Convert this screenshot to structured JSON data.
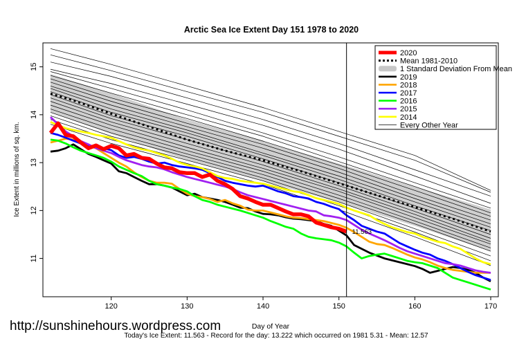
{
  "chart_data": {
    "type": "line",
    "title": "Arctic Sea Ice Extent Day 151 1978 to 2020",
    "xlabel": "Day of Year",
    "ylabel": "Ice Extent in millions of sq. km.",
    "xlim": [
      111,
      171
    ],
    "ylim": [
      10.2,
      15.5
    ],
    "x_ticks": [
      120,
      130,
      140,
      150,
      160,
      170
    ],
    "y_ticks": [
      11,
      12,
      13,
      14,
      15
    ],
    "current_day": 151,
    "current_value_label": "11.563",
    "footer": "Today's Ice Extent: 11.563  - Record for the day: 13.222 which occurred on 1981 5.31  - Mean: 12.57",
    "watermark": "http://sunshinehours.wordpress.com",
    "legend_position": "top-right",
    "legend": [
      {
        "label": "2020",
        "color": "#ff0000",
        "style": "thick"
      },
      {
        "label": "Mean 1981-2010",
        "color": "#000000",
        "style": "dotted"
      },
      {
        "label": "1 Standard Deviation From Mean",
        "color": "#c8c8c8",
        "style": "band"
      },
      {
        "label": "2019",
        "color": "#000000",
        "style": "line"
      },
      {
        "label": "2018",
        "color": "#ffa500",
        "style": "line"
      },
      {
        "label": "2017",
        "color": "#0000ff",
        "style": "line"
      },
      {
        "label": "2016",
        "color": "#00ff00",
        "style": "line"
      },
      {
        "label": "2015",
        "color": "#a020f0",
        "style": "line"
      },
      {
        "label": "2014",
        "color": "#ffff00",
        "style": "line"
      },
      {
        "label": "Every Other Year",
        "color": "#000000",
        "style": "thin"
      }
    ],
    "mean": {
      "x": [
        112,
        115,
        120,
        125,
        130,
        135,
        140,
        145,
        150,
        155,
        160,
        165,
        170
      ],
      "y": [
        14.44,
        14.3,
        14.02,
        13.75,
        13.48,
        13.25,
        13.05,
        12.82,
        12.57,
        12.32,
        12.07,
        11.83,
        11.56
      ]
    },
    "std_band": {
      "x": [
        112,
        120,
        130,
        140,
        150,
        160,
        170
      ],
      "upper": [
        14.85,
        14.45,
        13.9,
        13.45,
        12.98,
        12.5,
        12.02
      ],
      "lower": [
        14.05,
        13.6,
        13.05,
        12.62,
        12.17,
        11.68,
        11.15
      ]
    },
    "series": [
      {
        "name": "2020",
        "color": "#ff0000",
        "width": 5.5,
        "x": [
          112,
          113,
          114,
          115,
          116,
          117,
          118,
          119,
          120,
          121,
          122,
          123,
          124,
          125,
          126,
          127,
          128,
          129,
          130,
          131,
          132,
          133,
          134,
          135,
          136,
          137,
          138,
          139,
          140,
          141,
          142,
          143,
          144,
          145,
          146,
          147,
          148,
          149,
          150,
          151
        ],
        "y": [
          13.62,
          13.82,
          13.58,
          13.55,
          13.42,
          13.3,
          13.36,
          13.28,
          13.35,
          13.3,
          13.15,
          13.18,
          13.1,
          13.08,
          12.98,
          12.9,
          12.88,
          12.8,
          12.78,
          12.78,
          12.7,
          12.75,
          12.62,
          12.55,
          12.45,
          12.3,
          12.25,
          12.18,
          12.12,
          12.12,
          12.05,
          11.98,
          11.92,
          11.92,
          11.88,
          11.75,
          11.7,
          11.65,
          11.62,
          11.56
        ]
      },
      {
        "name": "2019",
        "color": "#000000",
        "width": 2.8,
        "x": [
          112,
          113,
          114,
          115,
          116,
          117,
          118,
          119,
          120,
          121,
          122,
          123,
          124,
          125,
          126,
          127,
          128,
          129,
          130,
          131,
          132,
          133,
          134,
          135,
          136,
          137,
          138,
          139,
          140,
          141,
          142,
          143,
          144,
          145,
          146,
          147,
          148,
          149,
          150,
          151,
          152,
          153,
          154,
          155,
          156,
          157,
          158,
          159,
          160,
          161,
          162,
          163,
          164,
          165,
          166,
          167,
          168,
          169,
          170
        ],
        "y": [
          13.23,
          13.25,
          13.3,
          13.38,
          13.28,
          13.18,
          13.12,
          13.05,
          12.98,
          12.82,
          12.78,
          12.7,
          12.62,
          12.55,
          12.55,
          12.52,
          12.48,
          12.4,
          12.32,
          12.35,
          12.28,
          12.25,
          12.22,
          12.18,
          12.12,
          12.06,
          12.05,
          11.98,
          11.93,
          11.92,
          11.9,
          11.86,
          11.83,
          11.82,
          11.8,
          11.78,
          11.72,
          11.68,
          11.58,
          11.48,
          11.28,
          11.2,
          11.12,
          11.06,
          11.0,
          10.96,
          10.92,
          10.88,
          10.84,
          10.78,
          10.7,
          10.74,
          10.78,
          10.82,
          10.8,
          10.76,
          10.7,
          10.6,
          10.52
        ]
      },
      {
        "name": "2018",
        "color": "#ffa500",
        "width": 2.8,
        "x": [
          112,
          113,
          114,
          115,
          116,
          117,
          118,
          119,
          120,
          121,
          122,
          123,
          124,
          125,
          126,
          127,
          128,
          129,
          130,
          131,
          132,
          133,
          134,
          135,
          136,
          137,
          138,
          139,
          140,
          141,
          142,
          143,
          144,
          145,
          146,
          147,
          148,
          149,
          150,
          151,
          152,
          153,
          154,
          155,
          156,
          157,
          158,
          159,
          160,
          161,
          162,
          163,
          164,
          165,
          166,
          167,
          168,
          169,
          170
        ],
        "y": [
          13.42,
          13.46,
          13.5,
          13.48,
          13.42,
          13.35,
          13.3,
          13.2,
          13.1,
          13.0,
          12.92,
          12.8,
          12.7,
          12.62,
          12.58,
          12.58,
          12.56,
          12.45,
          12.35,
          12.3,
          12.28,
          12.24,
          12.18,
          12.22,
          12.15,
          12.1,
          12.02,
          12.0,
          12.0,
          11.96,
          11.92,
          11.88,
          11.85,
          11.84,
          11.82,
          11.8,
          11.78,
          11.74,
          11.7,
          11.64,
          11.55,
          11.45,
          11.35,
          11.3,
          11.28,
          11.22,
          11.15,
          11.08,
          11.02,
          10.98,
          10.92,
          10.85,
          10.8,
          10.76,
          10.74,
          10.72,
          10.7,
          10.7,
          10.7
        ]
      },
      {
        "name": "2017",
        "color": "#0000ff",
        "width": 2.8,
        "x": [
          112,
          113,
          114,
          115,
          116,
          117,
          118,
          119,
          120,
          121,
          122,
          123,
          124,
          125,
          126,
          127,
          128,
          129,
          130,
          131,
          132,
          133,
          134,
          135,
          136,
          137,
          138,
          139,
          140,
          141,
          142,
          143,
          144,
          145,
          146,
          147,
          148,
          149,
          150,
          151,
          152,
          153,
          154,
          155,
          156,
          157,
          158,
          159,
          160,
          161,
          162,
          163,
          164,
          165,
          166,
          167,
          168,
          169,
          170
        ],
        "y": [
          13.62,
          13.58,
          13.52,
          13.46,
          13.4,
          13.35,
          13.34,
          13.3,
          13.26,
          13.15,
          13.1,
          13.12,
          13.08,
          13.02,
          12.98,
          13.0,
          12.95,
          12.92,
          12.9,
          12.88,
          12.85,
          12.78,
          12.7,
          12.62,
          12.58,
          12.55,
          12.52,
          12.5,
          12.52,
          12.46,
          12.4,
          12.36,
          12.3,
          12.28,
          12.25,
          12.18,
          12.14,
          12.08,
          12.03,
          11.9,
          11.8,
          11.68,
          11.62,
          11.56,
          11.52,
          11.42,
          11.32,
          11.25,
          11.18,
          11.12,
          11.08,
          11.0,
          10.95,
          10.88,
          10.8,
          10.72,
          10.65,
          10.6,
          10.55
        ]
      },
      {
        "name": "2016",
        "color": "#00ff00",
        "width": 2.8,
        "x": [
          112,
          113,
          114,
          115,
          116,
          117,
          118,
          119,
          120,
          121,
          122,
          123,
          124,
          125,
          126,
          127,
          128,
          129,
          130,
          131,
          132,
          133,
          134,
          135,
          136,
          137,
          138,
          139,
          140,
          141,
          142,
          143,
          144,
          145,
          146,
          147,
          148,
          149,
          150,
          151,
          152,
          153,
          154,
          155,
          156,
          157,
          158,
          159,
          160,
          161,
          162,
          163,
          164,
          165,
          166,
          167,
          168,
          169,
          170
        ],
        "y": [
          13.48,
          13.46,
          13.4,
          13.32,
          13.25,
          13.2,
          13.15,
          13.1,
          13.02,
          12.92,
          12.85,
          12.78,
          12.72,
          12.62,
          12.55,
          12.52,
          12.48,
          12.45,
          12.4,
          12.3,
          12.22,
          12.18,
          12.12,
          12.08,
          12.04,
          12.0,
          11.95,
          11.9,
          11.85,
          11.78,
          11.72,
          11.66,
          11.62,
          11.52,
          11.45,
          11.42,
          11.4,
          11.38,
          11.33,
          11.25,
          11.12,
          11.0,
          11.05,
          11.08,
          11.1,
          11.05,
          11.0,
          10.95,
          10.92,
          10.9,
          10.85,
          10.8,
          10.7,
          10.6,
          10.55,
          10.5,
          10.45,
          10.4,
          10.35
        ]
      },
      {
        "name": "2015",
        "color": "#a020f0",
        "width": 2.8,
        "x": [
          112,
          113,
          114,
          115,
          116,
          117,
          118,
          119,
          120,
          121,
          122,
          123,
          124,
          125,
          126,
          127,
          128,
          129,
          130,
          131,
          132,
          133,
          134,
          135,
          136,
          137,
          138,
          139,
          140,
          141,
          142,
          143,
          144,
          145,
          146,
          147,
          148,
          149,
          150,
          151,
          152,
          153,
          154,
          155,
          156,
          157,
          158,
          159,
          160,
          161,
          162,
          163,
          164,
          165,
          166,
          167,
          168,
          169,
          170
        ],
        "y": [
          13.95,
          13.8,
          13.65,
          13.55,
          13.45,
          13.38,
          13.3,
          13.25,
          13.2,
          13.12,
          13.05,
          13.0,
          12.95,
          12.92,
          12.9,
          12.86,
          12.8,
          12.75,
          12.7,
          12.66,
          12.62,
          12.58,
          12.54,
          12.5,
          12.45,
          12.38,
          12.32,
          12.28,
          12.24,
          12.2,
          12.16,
          12.12,
          12.08,
          12.04,
          12.0,
          11.98,
          11.9,
          11.88,
          11.85,
          11.8,
          11.7,
          11.6,
          11.52,
          11.45,
          11.38,
          11.3,
          11.22,
          11.15,
          11.1,
          11.05,
          11.0,
          10.95,
          10.9,
          10.88,
          10.85,
          10.8,
          10.75,
          10.72,
          10.7
        ]
      },
      {
        "name": "2014",
        "color": "#ffff00",
        "width": 2.8,
        "x": [
          112,
          113,
          114,
          115,
          116,
          117,
          118,
          119,
          120,
          121,
          122,
          123,
          124,
          125,
          126,
          127,
          128,
          129,
          130,
          131,
          132,
          133,
          134,
          135,
          136,
          137,
          138,
          139,
          140,
          141,
          142,
          143,
          144,
          145,
          146,
          147,
          148,
          149,
          150,
          151,
          152,
          153,
          154,
          155,
          156,
          157,
          158,
          159,
          160,
          161,
          162,
          163,
          164,
          165,
          166,
          167,
          168,
          169,
          170
        ],
        "y": [
          13.85,
          13.78,
          13.72,
          13.68,
          13.65,
          13.62,
          13.58,
          13.55,
          13.52,
          13.45,
          13.38,
          13.32,
          13.28,
          13.25,
          13.2,
          13.15,
          13.08,
          13.0,
          12.95,
          12.92,
          12.88,
          12.8,
          12.72,
          12.68,
          12.66,
          12.62,
          12.6,
          12.58,
          12.56,
          12.52,
          12.48,
          12.44,
          12.4,
          12.38,
          12.32,
          12.26,
          12.22,
          12.18,
          12.14,
          12.06,
          12.0,
          11.95,
          11.9,
          11.8,
          11.72,
          11.65,
          11.6,
          11.55,
          11.52,
          11.45,
          11.4,
          11.35,
          11.32,
          11.25,
          11.2,
          11.1,
          11.0,
          10.92,
          10.88
        ]
      }
    ],
    "other_years": {
      "x": [
        112,
        120,
        130,
        140,
        150,
        160,
        170
      ],
      "lines": [
        [
          15.38,
          15.05,
          14.6,
          14.15,
          13.65,
          13.15,
          12.42
        ],
        [
          15.25,
          14.92,
          14.48,
          14.05,
          13.55,
          13.05,
          12.38
        ],
        [
          15.1,
          14.8,
          14.35,
          13.9,
          13.4,
          12.85,
          12.3
        ],
        [
          14.95,
          14.65,
          14.22,
          13.78,
          13.28,
          12.72,
          12.15
        ],
        [
          14.9,
          14.55,
          14.1,
          13.62,
          13.12,
          12.58,
          12.05
        ],
        [
          14.82,
          14.45,
          14.0,
          13.55,
          13.02,
          12.5,
          11.95
        ],
        [
          14.75,
          14.35,
          13.92,
          13.45,
          12.95,
          12.42,
          11.88
        ],
        [
          14.68,
          14.28,
          13.82,
          13.38,
          12.88,
          12.32,
          11.8
        ],
        [
          14.6,
          14.2,
          13.75,
          13.3,
          12.8,
          12.25,
          11.72
        ],
        [
          14.55,
          14.12,
          13.68,
          13.2,
          12.72,
          12.18,
          11.65
        ],
        [
          14.48,
          14.05,
          13.62,
          13.15,
          12.65,
          12.1,
          11.58
        ],
        [
          14.42,
          13.98,
          13.55,
          13.08,
          12.58,
          12.05,
          11.5
        ],
        [
          14.35,
          13.92,
          13.48,
          13.02,
          12.52,
          11.98,
          11.42
        ],
        [
          14.28,
          13.85,
          13.4,
          12.95,
          12.45,
          11.92,
          11.35
        ],
        [
          14.2,
          13.78,
          13.32,
          12.88,
          12.4,
          11.85,
          11.3
        ],
        [
          14.12,
          13.7,
          13.25,
          12.82,
          12.32,
          11.78,
          11.22
        ],
        [
          14.05,
          13.62,
          13.18,
          12.75,
          12.25,
          11.72,
          11.15
        ],
        [
          13.98,
          13.55,
          13.12,
          12.68,
          12.18,
          11.62,
          11.05
        ],
        [
          13.9,
          13.48,
          13.05,
          12.62,
          12.1,
          11.55,
          10.95
        ],
        [
          13.8,
          13.4,
          12.98,
          12.55,
          12.02,
          11.45,
          10.85
        ]
      ]
    }
  }
}
